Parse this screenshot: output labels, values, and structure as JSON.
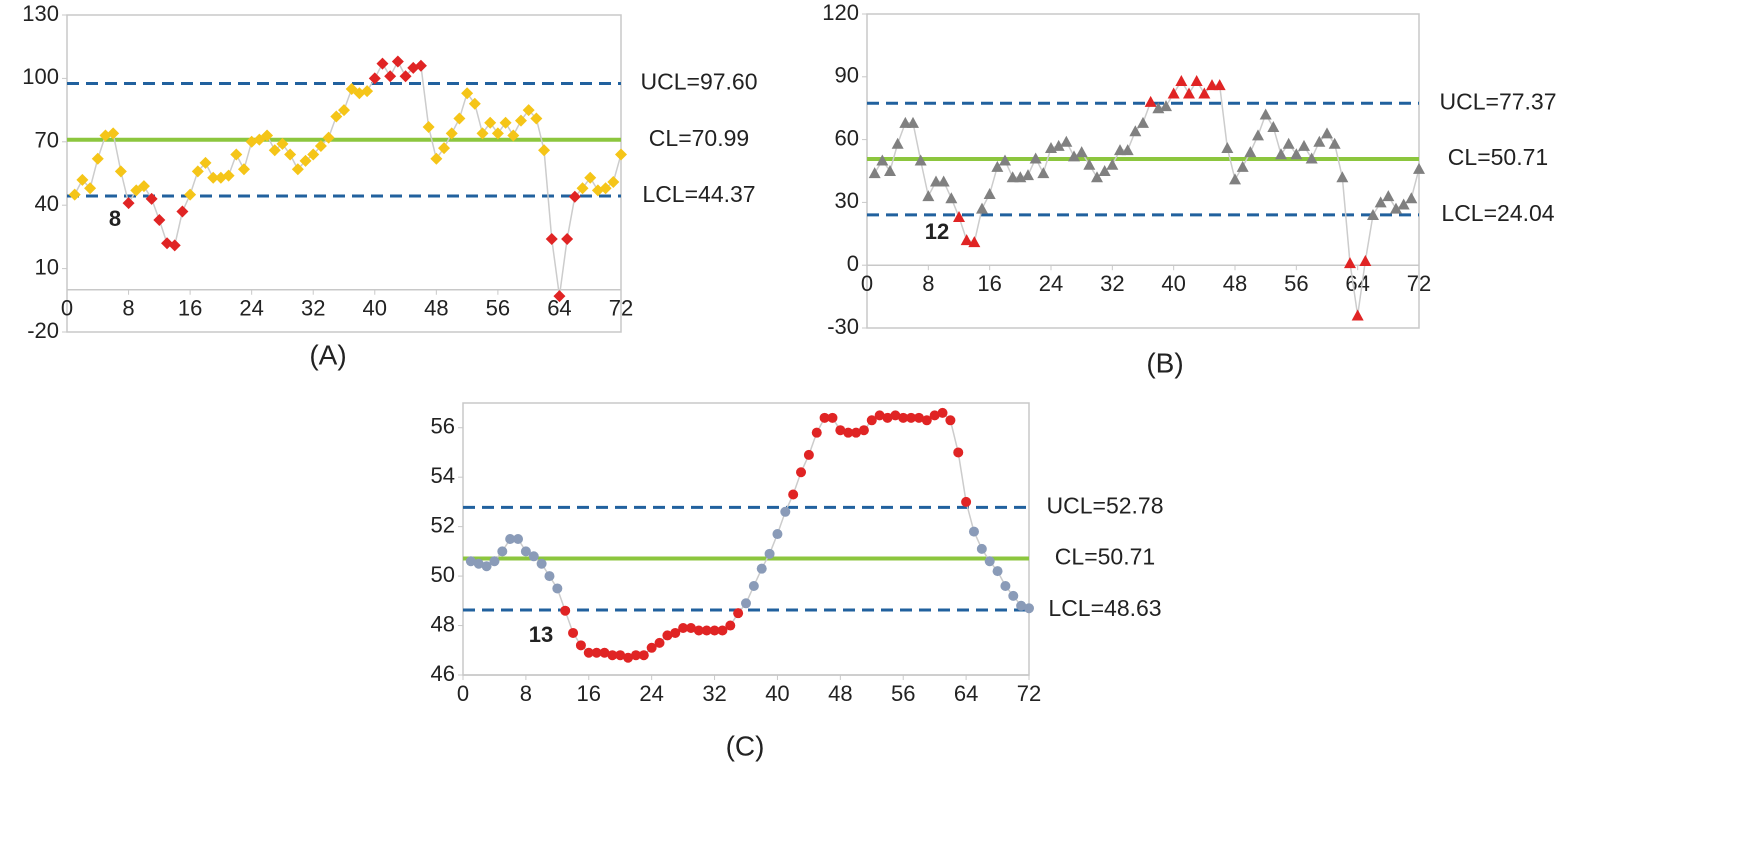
{
  "chart_data": [
    {
      "type": "line",
      "caption": "(A)",
      "marker": "diamond",
      "color": "#f5c518",
      "alarm_color": "#e02424",
      "line_color": "#cccccc",
      "xlim": [
        0,
        72
      ],
      "xticks": [
        0,
        8,
        16,
        24,
        32,
        40,
        48,
        56,
        64,
        72
      ],
      "ylim": [
        -20,
        130
      ],
      "yticks": [
        -20,
        10,
        40,
        70,
        100,
        130
      ],
      "x": [
        1,
        2,
        3,
        4,
        5,
        6,
        7,
        8,
        9,
        10,
        11,
        12,
        13,
        14,
        15,
        16,
        17,
        18,
        19,
        20,
        21,
        22,
        23,
        24,
        25,
        26,
        27,
        28,
        29,
        30,
        31,
        32,
        33,
        34,
        35,
        36,
        37,
        38,
        39,
        40,
        41,
        42,
        43,
        44,
        45,
        46,
        47,
        48,
        49,
        50,
        51,
        52,
        53,
        54,
        55,
        56,
        57,
        58,
        59,
        60,
        61,
        62,
        63,
        64,
        65,
        66,
        67,
        68,
        69,
        70,
        71,
        72
      ],
      "values": [
        45,
        52,
        48,
        62,
        73,
        74,
        56,
        41,
        47,
        49,
        43,
        33,
        22,
        21,
        37,
        45,
        56,
        60,
        53,
        53,
        54,
        64,
        57,
        70,
        71,
        73,
        66,
        69,
        64,
        57,
        61,
        64,
        68,
        72,
        82,
        85,
        95,
        93,
        94,
        100,
        107,
        101,
        108,
        101,
        105,
        106,
        77,
        62,
        67,
        74,
        81,
        93,
        88,
        74,
        79,
        74,
        79,
        73,
        80,
        85,
        81,
        66,
        24,
        -3,
        24,
        44,
        48,
        53,
        47,
        48,
        51,
        64
      ],
      "alarm": [
        false,
        false,
        false,
        false,
        false,
        false,
        false,
        true,
        false,
        false,
        true,
        true,
        true,
        true,
        true,
        false,
        false,
        false,
        false,
        false,
        false,
        false,
        false,
        false,
        false,
        false,
        false,
        false,
        false,
        false,
        false,
        false,
        false,
        false,
        false,
        false,
        false,
        false,
        false,
        true,
        true,
        true,
        true,
        true,
        true,
        true,
        false,
        false,
        false,
        false,
        false,
        false,
        false,
        false,
        false,
        false,
        false,
        false,
        false,
        false,
        false,
        false,
        true,
        true,
        true,
        true,
        false,
        false,
        false,
        false,
        false,
        false
      ],
      "control_lines": [
        {
          "label": "UCL=97.60",
          "value": 97.6,
          "color": "#21619e",
          "dashed": true
        },
        {
          "label": "CL=70.99",
          "value": 70.99,
          "color": "#8cc63e",
          "dashed": false
        },
        {
          "label": "LCL=44.37",
          "value": 44.37,
          "color": "#21619e",
          "dashed": true
        }
      ],
      "annotation": "8"
    },
    {
      "type": "line",
      "caption": "(B)",
      "marker": "triangle",
      "color": "#808080",
      "alarm_color": "#e02424",
      "line_color": "#cccccc",
      "xlim": [
        0,
        72
      ],
      "xticks": [
        0,
        8,
        16,
        24,
        32,
        40,
        48,
        56,
        64,
        72
      ],
      "ylim": [
        -30,
        120
      ],
      "yticks": [
        -30,
        0,
        30,
        60,
        90,
        120
      ],
      "x": [
        1,
        2,
        3,
        4,
        5,
        6,
        7,
        8,
        9,
        10,
        11,
        12,
        13,
        14,
        15,
        16,
        17,
        18,
        19,
        20,
        21,
        22,
        23,
        24,
        25,
        26,
        27,
        28,
        29,
        30,
        31,
        32,
        33,
        34,
        35,
        36,
        37,
        38,
        39,
        40,
        41,
        42,
        43,
        44,
        45,
        46,
        47,
        48,
        49,
        50,
        51,
        52,
        53,
        54,
        55,
        56,
        57,
        58,
        59,
        60,
        61,
        62,
        63,
        64,
        65,
        66,
        67,
        68,
        69,
        70,
        71,
        72
      ],
      "values": [
        44,
        50,
        45,
        58,
        68,
        68,
        50,
        33,
        40,
        40,
        32,
        23,
        12,
        11,
        27,
        34,
        47,
        50,
        42,
        42,
        43,
        51,
        44,
        56,
        57,
        59,
        52,
        54,
        48,
        42,
        45,
        48,
        55,
        55,
        64,
        68,
        78,
        75,
        76,
        82,
        88,
        82,
        88,
        82,
        86,
        86,
        56,
        41,
        47,
        54,
        62,
        72,
        66,
        53,
        58,
        53,
        57,
        51,
        59,
        63,
        58,
        42,
        1,
        -24,
        2,
        24,
        30,
        33,
        27,
        29,
        32,
        46
      ],
      "alarm": [
        false,
        false,
        false,
        false,
        false,
        false,
        false,
        false,
        false,
        false,
        false,
        true,
        true,
        true,
        false,
        false,
        false,
        false,
        false,
        false,
        false,
        false,
        false,
        false,
        false,
        false,
        false,
        false,
        false,
        false,
        false,
        false,
        false,
        false,
        false,
        false,
        true,
        false,
        false,
        true,
        true,
        true,
        true,
        true,
        true,
        true,
        false,
        false,
        false,
        false,
        false,
        false,
        false,
        false,
        false,
        false,
        false,
        false,
        false,
        false,
        false,
        false,
        true,
        true,
        true,
        false,
        false,
        false,
        false,
        false,
        false,
        false
      ],
      "control_lines": [
        {
          "label": "UCL=77.37",
          "value": 77.37,
          "color": "#21619e",
          "dashed": true
        },
        {
          "label": "CL=50.71",
          "value": 50.71,
          "color": "#8cc63e",
          "dashed": false
        },
        {
          "label": "LCL=24.04",
          "value": 24.04,
          "color": "#21619e",
          "dashed": true
        }
      ],
      "annotation": "12"
    },
    {
      "type": "line",
      "caption": "(C)",
      "marker": "circle",
      "color": "#8a9bb8",
      "alarm_color": "#e02424",
      "line_color": "#cccccc",
      "xlim": [
        0,
        72
      ],
      "xticks": [
        0,
        8,
        16,
        24,
        32,
        40,
        48,
        56,
        64,
        72
      ],
      "ylim": [
        46,
        57
      ],
      "yticks": [
        46,
        48,
        50,
        52,
        54,
        56
      ],
      "x": [
        1,
        2,
        3,
        4,
        5,
        6,
        7,
        8,
        9,
        10,
        11,
        12,
        13,
        14,
        15,
        16,
        17,
        18,
        19,
        20,
        21,
        22,
        23,
        24,
        25,
        26,
        27,
        28,
        29,
        30,
        31,
        32,
        33,
        34,
        35,
        36,
        37,
        38,
        39,
        40,
        41,
        42,
        43,
        44,
        45,
        46,
        47,
        48,
        49,
        50,
        51,
        52,
        53,
        54,
        55,
        56,
        57,
        58,
        59,
        60,
        61,
        62,
        63,
        64,
        65,
        66,
        67,
        68,
        69,
        70,
        71,
        72
      ],
      "values": [
        50.6,
        50.5,
        50.4,
        50.6,
        51.0,
        51.5,
        51.5,
        51.0,
        50.8,
        50.5,
        50.0,
        49.5,
        48.6,
        47.7,
        47.2,
        46.9,
        46.9,
        46.9,
        46.8,
        46.8,
        46.7,
        46.8,
        46.8,
        47.1,
        47.3,
        47.6,
        47.7,
        47.9,
        47.9,
        47.8,
        47.8,
        47.8,
        47.8,
        48.0,
        48.5,
        48.9,
        49.6,
        50.3,
        50.9,
        51.7,
        52.6,
        53.3,
        54.2,
        54.9,
        55.8,
        56.4,
        56.4,
        55.9,
        55.8,
        55.8,
        55.9,
        56.3,
        56.5,
        56.4,
        56.5,
        56.4,
        56.4,
        56.4,
        56.3,
        56.5,
        56.6,
        56.3,
        55.0,
        53.0,
        51.8,
        51.1,
        50.6,
        50.2,
        49.6,
        49.2,
        48.8,
        48.7
      ],
      "alarm": [
        false,
        false,
        false,
        false,
        false,
        false,
        false,
        false,
        false,
        false,
        false,
        false,
        true,
        true,
        true,
        true,
        true,
        true,
        true,
        true,
        true,
        true,
        true,
        true,
        true,
        true,
        true,
        true,
        true,
        true,
        true,
        true,
        true,
        true,
        true,
        false,
        false,
        false,
        false,
        false,
        false,
        true,
        true,
        true,
        true,
        true,
        true,
        true,
        true,
        true,
        true,
        true,
        true,
        true,
        true,
        true,
        true,
        true,
        true,
        true,
        true,
        true,
        true,
        true,
        false,
        false,
        false,
        false,
        false,
        false,
        false,
        false
      ],
      "control_lines": [
        {
          "label": "UCL=52.78",
          "value": 52.78,
          "color": "#21619e",
          "dashed": true
        },
        {
          "label": "CL=50.71",
          "value": 50.71,
          "color": "#8cc63e",
          "dashed": false
        },
        {
          "label": "LCL=48.63",
          "value": 48.63,
          "color": "#21619e",
          "dashed": true
        }
      ],
      "annotation": "13"
    }
  ]
}
